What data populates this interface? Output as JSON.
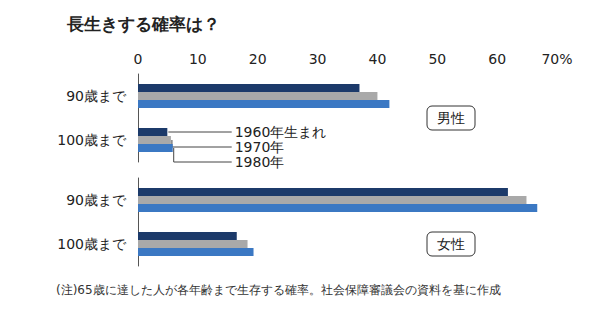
{
  "chart_data": {
    "type": "bar",
    "orientation": "horizontal",
    "title": "長生きする確率は？",
    "note": "(注)65歳に達した人が各年齢まで生存する確率。社会保障審議会の資料を基に作成",
    "categories": [
      "90歳まで",
      "100歳まで",
      "90歳まで",
      "100歳まで"
    ],
    "annotations": [
      "男性",
      "女性"
    ],
    "series": [
      {
        "name": "1960年生まれ",
        "color": "#1c3a6a",
        "values": [
          37,
          4.9,
          61.8,
          16.5
        ]
      },
      {
        "name": "1970年",
        "color": "#a9a9a9",
        "values": [
          40,
          5.5,
          64.9,
          18.3
        ]
      },
      {
        "name": "1980年",
        "color": "#3b78c3",
        "values": [
          42,
          5.8,
          66.7,
          19.3
        ]
      }
    ],
    "xlim": [
      0,
      70
    ],
    "xticks": [
      0,
      10,
      20,
      30,
      40,
      50,
      60,
      {
        "value": 70,
        "label": "70%"
      }
    ],
    "grid": false
  }
}
